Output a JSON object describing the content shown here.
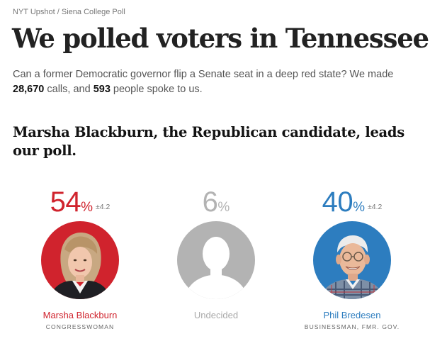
{
  "kicker": "NYT Upshot / Siena College Poll",
  "headline": "We polled voters in Tennessee.",
  "intro": {
    "before_calls": "Can a former Democratic governor flip a Senate seat in a deep red state? We made ",
    "calls": "28,670",
    "between": " calls, and ",
    "respondents": "593",
    "after": " people spoke to us."
  },
  "subhead": "Marsha Blackburn, the Republican candidate, leads our poll.",
  "candidates": [
    {
      "pct": "54",
      "pct_sign": "%",
      "moe": "±4.2",
      "name": "Marsha Blackburn",
      "role": "CONGRESSWOMAN",
      "color": "#d0232d",
      "photo_icon": "candidate-photo-blackburn"
    },
    {
      "pct": "6",
      "pct_sign": "%",
      "moe": "",
      "name": "Undecided",
      "role": "",
      "color": "#b3b3b3",
      "photo_icon": "person-silhouette-icon"
    },
    {
      "pct": "40",
      "pct_sign": "%",
      "moe": "±4.2",
      "name": "Phil Bredesen",
      "role": "BUSINESSMAN, FMR. GOV.",
      "color": "#2d7dbf",
      "photo_icon": "candidate-photo-bredesen"
    }
  ]
}
